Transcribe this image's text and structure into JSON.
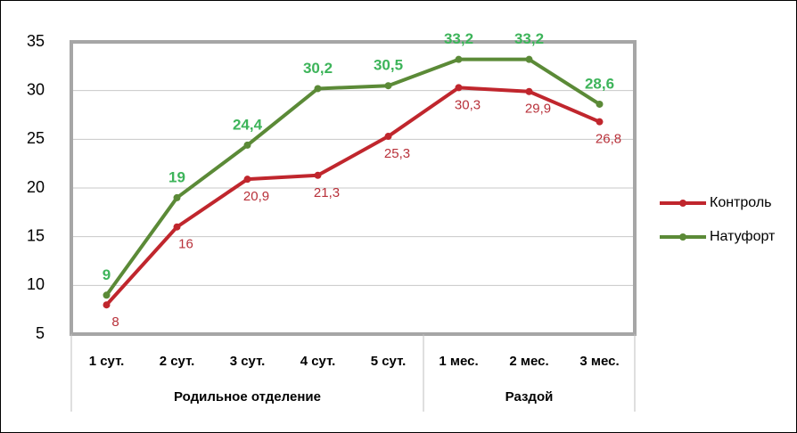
{
  "chart_data": {
    "type": "line",
    "categories": [
      "1 сут.",
      "2 сут.",
      "3 сут.",
      "4 сут.",
      "5 сут.",
      "1 мес.",
      "2 мес.",
      "3 мес."
    ],
    "groups": [
      {
        "label": "Родильное отделение",
        "count": 5
      },
      {
        "label": "Раздой",
        "count": 3
      }
    ],
    "series": [
      {
        "name": "Контроль",
        "color": "#c0262d",
        "label_color": "#b8313a",
        "values": [
          8,
          16,
          20.9,
          21.3,
          25.3,
          30.3,
          29.9,
          26.8
        ],
        "value_labels": [
          "8",
          "16",
          "20,9",
          "21,3",
          "25,3",
          "30,3",
          "29,9",
          "26,8"
        ]
      },
      {
        "name": "Натуфорт",
        "color": "#5b8a37",
        "label_color": "#3db45a",
        "values": [
          9,
          19,
          24.4,
          30.2,
          30.5,
          33.2,
          33.2,
          28.6
        ],
        "value_labels": [
          "9",
          "19",
          "24,4",
          "30,2",
          "30,5",
          "33,2",
          "33,2",
          "28,6"
        ]
      }
    ],
    "ylim": [
      5,
      35
    ],
    "yticks": [
      5,
      10,
      15,
      20,
      25,
      30,
      35
    ],
    "grid": true,
    "legend": "right"
  }
}
